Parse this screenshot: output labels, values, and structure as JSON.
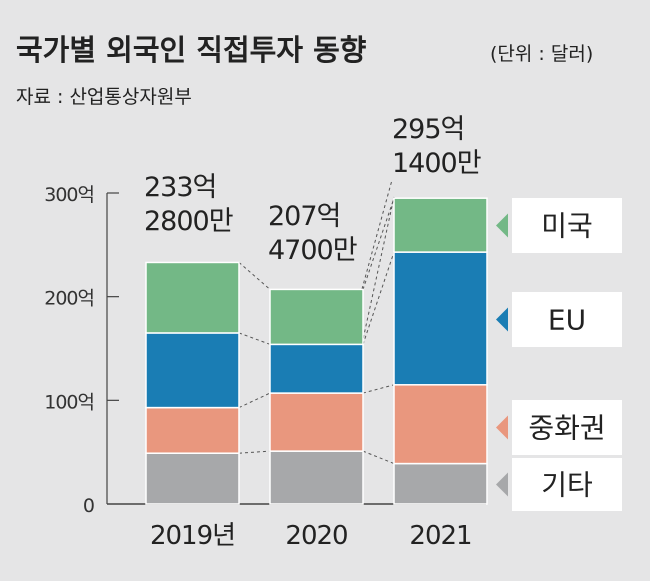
{
  "chart_data": {
    "type": "bar",
    "stacked": true,
    "title": "국가별 외국인 직접투자 동향",
    "unit_label": "(단위 : 달러)",
    "source": "자료 : 산업통상자원부",
    "categories": [
      "2019년",
      "2020",
      "2021"
    ],
    "series": [
      {
        "name": "기타",
        "color": "#a7a8aa",
        "values": [
          49,
          51,
          39
        ]
      },
      {
        "name": "중화권",
        "color": "#e9977e",
        "values": [
          44,
          56,
          76
        ]
      },
      {
        "name": "EU",
        "color": "#1a7db4",
        "values": [
          72,
          47,
          128
        ]
      },
      {
        "name": "미국",
        "color": "#73b886",
        "values": [
          68,
          53,
          52
        ]
      }
    ],
    "totals": [
      [
        "233억",
        "2800만"
      ],
      [
        "207억",
        "4700만"
      ],
      [
        "295억",
        "1400만"
      ]
    ],
    "y_ticks": [
      {
        "value": 0,
        "label": "0"
      },
      {
        "value": 100,
        "label": "100억"
      },
      {
        "value": 200,
        "label": "200억"
      },
      {
        "value": 300,
        "label": "300억"
      }
    ],
    "ylim": [
      0,
      300
    ],
    "ylabel": "",
    "xlabel": "",
    "grid": false,
    "legend_position": "right"
  }
}
